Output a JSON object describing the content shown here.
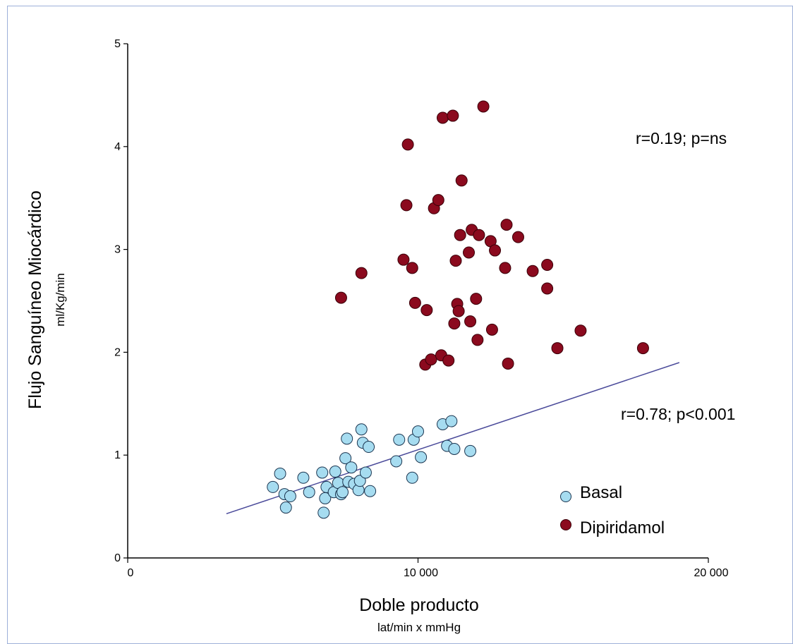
{
  "chart_data": {
    "type": "scatter",
    "ylabel": "Flujo Sanguíneo Miocárdico",
    "ylabel_unit": "ml/Kg/min",
    "xlabel": "Doble producto",
    "xlabel_unit": "lat/min x mmHg",
    "xlim": [
      0,
      20000
    ],
    "ylim": [
      0,
      5
    ],
    "x_ticks": [
      0,
      10000,
      20000
    ],
    "x_tick_labels": [
      "0",
      "10 000",
      "20 000"
    ],
    "y_ticks": [
      0,
      1,
      2,
      3,
      4,
      5
    ],
    "y_tick_labels": [
      "0",
      "1",
      "2",
      "3",
      "4",
      "5"
    ],
    "grid": false,
    "legend_placement": "bottom-right",
    "annotations": [
      {
        "text": "r=0.19; p=ns",
        "series": "Dipiridamol"
      },
      {
        "text": "r=0.78; p<0.001",
        "series": "Basal"
      }
    ],
    "series": [
      {
        "name": "Basal",
        "color": "#a6dcf0",
        "edge_color": "#1b3550",
        "x": [
          5000,
          5250,
          5400,
          5450,
          5600,
          6050,
          6250,
          6700,
          6750,
          6800,
          6850,
          7100,
          7150,
          7250,
          7350,
          7400,
          7500,
          7550,
          7600,
          7700,
          7800,
          7950,
          8000,
          8050,
          8100,
          8200,
          8300,
          8350,
          9250,
          9350,
          9800,
          9850,
          10000,
          10100,
          10850,
          11000,
          11150,
          11250,
          11800
        ],
        "y": [
          0.69,
          0.82,
          0.62,
          0.49,
          0.6,
          0.78,
          0.64,
          0.83,
          0.44,
          0.58,
          0.69,
          0.64,
          0.84,
          0.73,
          0.62,
          0.64,
          0.97,
          1.16,
          0.74,
          0.88,
          0.72,
          0.66,
          0.75,
          1.25,
          1.12,
          0.83,
          1.08,
          0.65,
          0.94,
          1.15,
          0.78,
          1.15,
          1.23,
          0.98,
          1.3,
          1.09,
          1.33,
          1.06,
          1.04
        ]
      },
      {
        "name": "Dipiridamol",
        "color": "#8b0a1e",
        "edge_color": "#3a0008",
        "x": [
          7350,
          8050,
          9500,
          9600,
          9650,
          9800,
          9900,
          10250,
          10300,
          10450,
          10550,
          10700,
          10800,
          10850,
          11050,
          11200,
          11250,
          11300,
          11350,
          11400,
          11450,
          11500,
          11750,
          11800,
          11850,
          12000,
          12050,
          12100,
          12250,
          12500,
          12550,
          12650,
          13000,
          13050,
          13100,
          13450,
          13950,
          14450,
          14450,
          14800,
          15600,
          17750
        ],
        "y": [
          2.53,
          2.77,
          2.9,
          3.43,
          4.02,
          2.82,
          2.48,
          1.88,
          2.41,
          1.93,
          3.4,
          3.48,
          1.97,
          4.28,
          1.92,
          4.3,
          2.28,
          2.89,
          2.47,
          2.4,
          3.14,
          3.67,
          2.97,
          2.3,
          3.19,
          2.52,
          2.12,
          3.14,
          4.39,
          3.08,
          2.22,
          2.99,
          2.82,
          3.24,
          1.89,
          3.12,
          2.79,
          2.62,
          2.85,
          2.04,
          2.21,
          2.04
        ]
      }
    ],
    "trend_line": {
      "series": "Basal",
      "x": [
        3400,
        19000
      ],
      "y": [
        0.43,
        1.9
      ],
      "color": "#4a4a9a"
    }
  }
}
